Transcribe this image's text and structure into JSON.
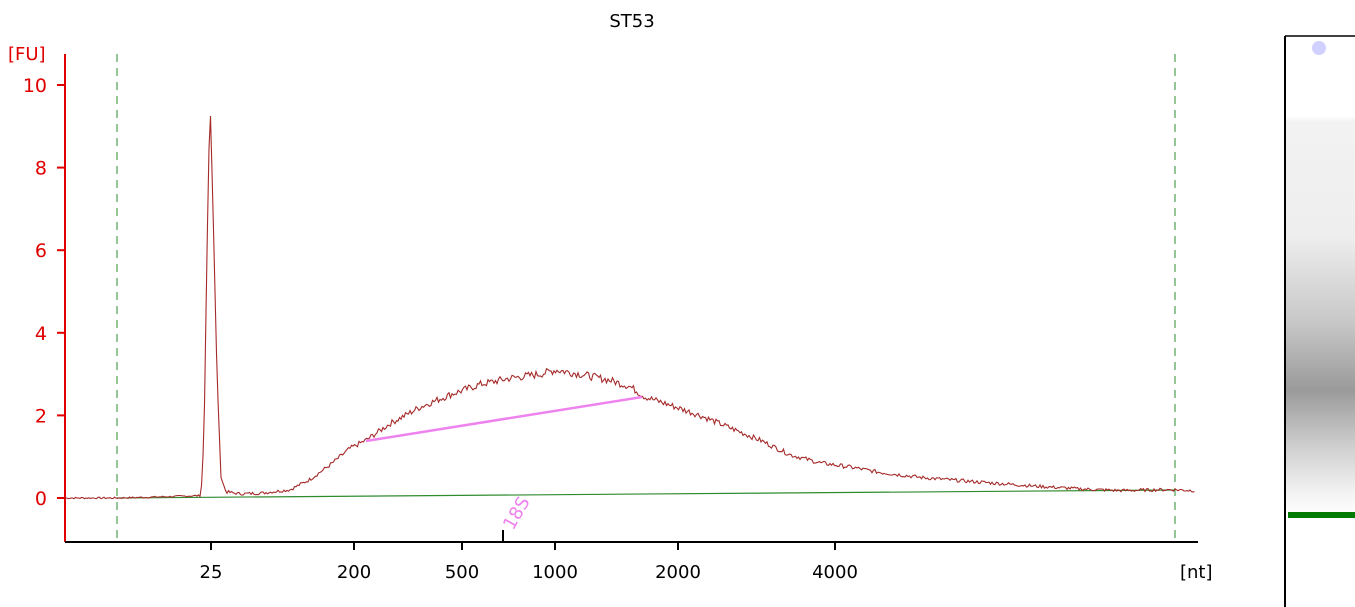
{
  "chart_data": {
    "type": "line",
    "title": "ST53",
    "ylabel": "[FU]",
    "xlabel": "[nt]",
    "ylim": [
      -1,
      10.8
    ],
    "y_ticks": [
      0,
      2,
      4,
      6,
      8,
      10
    ],
    "x_ticks": [
      "25",
      "200",
      "500",
      "1000",
      "2000",
      "4000"
    ],
    "colors": {
      "trace": "#a52a2a",
      "axes": "#000000",
      "y_axis": "#e00000",
      "baseline": "#2e8b2e",
      "region": "#ee82ee",
      "markers": "#2e8b2e",
      "gel_band": "#007a00"
    },
    "annotations": [
      {
        "label": "18S",
        "x": "800"
      }
    ],
    "gel_lane": {
      "dark_band_fraction": 0.62,
      "marker_band_fraction": 0.88
    }
  }
}
